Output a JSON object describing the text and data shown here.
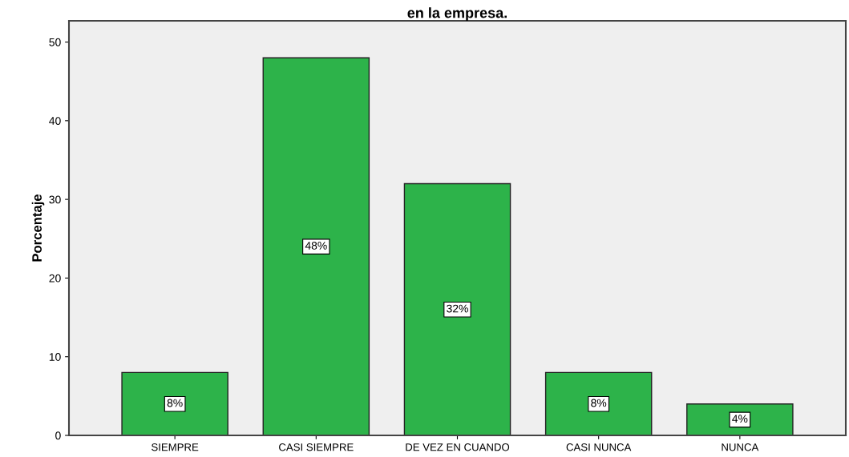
{
  "chart_data": {
    "type": "bar",
    "title": "en la empresa.",
    "ylabel": "Porcentaje",
    "categories": [
      "SIEMPRE",
      "CASI SIEMPRE",
      "DE VEZ EN CUANDO",
      "CASI NUNCA",
      "NUNCA"
    ],
    "values": [
      8,
      48,
      32,
      8,
      4
    ],
    "value_labels": [
      "8%",
      "48%",
      "32%",
      "8%",
      "4%"
    ],
    "color": "#2db34a",
    "ylim": [
      0,
      52.7
    ],
    "yticks": [
      0,
      10,
      20,
      30,
      40,
      50
    ],
    "grid": false,
    "legend": false
  }
}
